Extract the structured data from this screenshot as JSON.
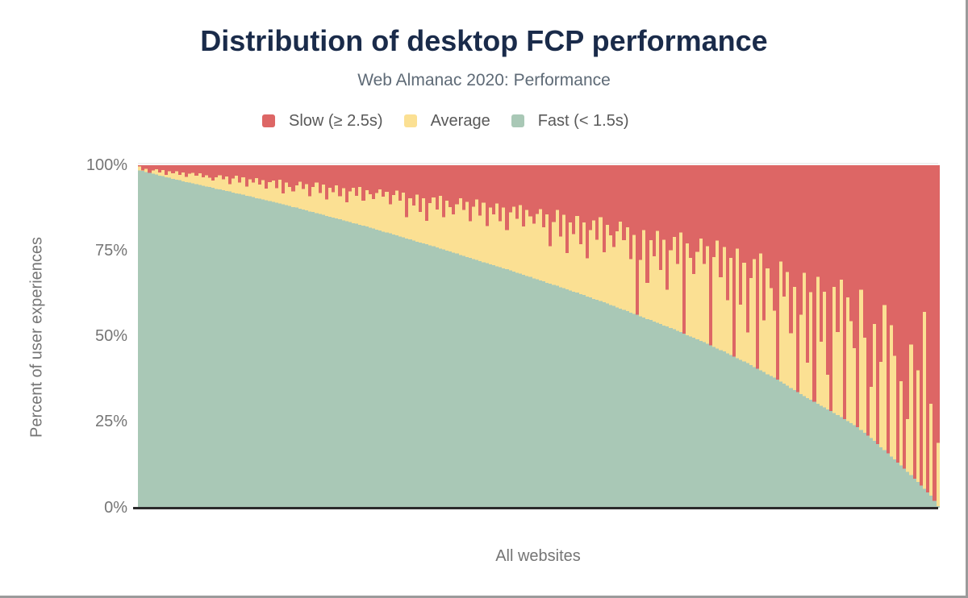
{
  "header": {
    "title": "Distribution of desktop FCP performance",
    "subtitle": "Web Almanac 2020: Performance"
  },
  "legend": {
    "items": [
      {
        "key": "slow",
        "label": "Slow (≥ 2.5s)",
        "color": "#dd6665"
      },
      {
        "key": "average",
        "label": "Average",
        "color": "#fbe093"
      },
      {
        "key": "fast",
        "label": "Fast (< 1.5s)",
        "color": "#a9c8b6"
      }
    ]
  },
  "axes": {
    "y_title": "Percent of user experiences",
    "y_ticks": [
      "100%",
      "75%",
      "50%",
      "25%",
      "0%"
    ],
    "x_label": "All websites"
  },
  "colors": {
    "slow": "#dd6665",
    "average": "#fbe093",
    "fast": "#a9c8b6",
    "title": "#1a2b4a",
    "subtitle": "#5e6a76",
    "axis_text": "#757575",
    "axis_line": "#2b2b2b"
  },
  "chart_data": {
    "type": "bar",
    "stacked": true,
    "title": "Distribution of desktop FCP performance",
    "subtitle": "Web Almanac 2020: Performance",
    "xlabel": "All websites",
    "ylabel": "Percent of user experiences",
    "ylim": [
      0,
      100
    ],
    "grid": false,
    "legend_position": "top",
    "series_order_bottom_to_top": [
      "fast",
      "average",
      "slow"
    ],
    "units": "percent of user experiences per website, websites sorted by descending fast share",
    "bars": {
      "fast": [
        98.5,
        98.3,
        98.0,
        97.8,
        97.5,
        97.3,
        97.0,
        96.8,
        96.5,
        96.3,
        96.0,
        95.8,
        95.6,
        95.3,
        95.1,
        94.9,
        94.7,
        94.5,
        94.2,
        94.0,
        93.8,
        93.6,
        93.4,
        93.1,
        92.9,
        92.7,
        92.5,
        92.3,
        92.0,
        91.8,
        91.6,
        91.4,
        91.1,
        90.9,
        90.7,
        90.4,
        90.2,
        90.0,
        89.8,
        89.5,
        89.3,
        89.1,
        88.8,
        88.6,
        88.3,
        88.1,
        87.8,
        87.6,
        87.3,
        87.1,
        86.8,
        86.5,
        86.3,
        86.0,
        85.8,
        85.5,
        85.2,
        85.0,
        84.7,
        84.5,
        84.2,
        83.9,
        83.7,
        83.4,
        83.1,
        82.9,
        82.6,
        82.3,
        82.1,
        81.8,
        81.5,
        81.2,
        80.9,
        80.6,
        80.3,
        80.1,
        79.8,
        79.5,
        79.2,
        78.9,
        78.6,
        78.3,
        78.0,
        77.7,
        77.4,
        77.2,
        76.9,
        76.6,
        76.3,
        76.0,
        75.7,
        75.4,
        75.1,
        74.8,
        74.5,
        74.2,
        73.8,
        73.5,
        73.2,
        72.9,
        72.6,
        72.3,
        72.0,
        71.7,
        71.4,
        71.1,
        70.8,
        70.5,
        70.2,
        69.9,
        69.6,
        69.3,
        69.0,
        68.6,
        68.3,
        68.0,
        67.7,
        67.4,
        67.0,
        66.7,
        66.4,
        66.1,
        65.7,
        65.4,
        65.1,
        64.8,
        64.4,
        64.1,
        63.8,
        63.4,
        63.1,
        62.8,
        62.4,
        62.1,
        61.7,
        61.4,
        61.0,
        60.7,
        60.3,
        60.0,
        59.6,
        59.2,
        58.9,
        58.5,
        58.1,
        57.8,
        57.4,
        57.0,
        56.6,
        56.3,
        55.9,
        55.5,
        55.1,
        54.8,
        54.4,
        54.0,
        53.6,
        53.2,
        52.9,
        52.5,
        52.1,
        51.7,
        51.3,
        50.8,
        50.4,
        50.0,
        49.6,
        49.2,
        48.7,
        48.3,
        47.9,
        47.4,
        47.0,
        46.5,
        46.0,
        45.6,
        45.1,
        44.6,
        44.1,
        43.7,
        43.2,
        42.7,
        42.2,
        41.6,
        41.1,
        40.6,
        40.1,
        39.6,
        39.0,
        38.5,
        38.0,
        37.4,
        36.8,
        36.2,
        35.6,
        35.0,
        34.4,
        33.8,
        33.2,
        32.6,
        32.0,
        31.5,
        30.9,
        30.4,
        29.8,
        29.3,
        28.7,
        28.2,
        27.6,
        27.1,
        26.5,
        25.9,
        25.3,
        24.7,
        24.1,
        23.5,
        22.7,
        21.9,
        21.1,
        20.3,
        19.5,
        18.6,
        17.7,
        16.8,
        15.9,
        15.0,
        14.1,
        13.2,
        12.3,
        11.4,
        10.5,
        9.5,
        8.5,
        7.5,
        6.5,
        5.5,
        4.5,
        3.5,
        2.0,
        0.5
      ],
      "slow": [
        0.4,
        1.5,
        1.1,
        2.2,
        1.5,
        1.2,
        2.1,
        1.4,
        2.8,
        1.8,
        2.3,
        1.8,
        2.8,
        2.1,
        3.4,
        2.5,
        2.2,
        3.0,
        2.3,
        3.5,
        2.9,
        3.7,
        4.5,
        3.5,
        2.9,
        4.1,
        3.3,
        5.5,
        3.9,
        3.1,
        5.0,
        3.5,
        6.2,
        4.1,
        5.0,
        3.8,
        5.7,
        4.3,
        6.8,
        4.9,
        4.5,
        6.7,
        4.2,
        8.2,
        5.1,
        6.3,
        7.7,
        5.9,
        4.8,
        6.9,
        5.5,
        9.1,
        6.4,
        5.1,
        8.1,
        5.7,
        10.0,
        6.6,
        7.9,
        5.9,
        9.1,
        6.7,
        10.8,
        7.7,
        6.6,
        8.9,
        6.4,
        10.3,
        7.3,
        8.5,
        9.9,
        8.1,
        7.1,
        9.2,
        7.8,
        11.4,
        8.7,
        7.4,
        10.4,
        8.0,
        15.2,
        9.7,
        11.8,
        8.6,
        13.6,
        9.7,
        16.2,
        11.1,
        9.4,
        12.9,
        8.9,
        15.2,
        10.3,
        12.2,
        14.3,
        11.4,
        9.7,
        13.0,
        10.7,
        16.4,
        12.1,
        10.0,
        14.7,
        10.9,
        17.8,
        12.3,
        14.4,
        11.2,
        16.3,
        12.4,
        18.9,
        13.8,
        12.1,
        15.7,
        11.6,
        17.9,
        13.1,
        14.9,
        17.1,
        14.2,
        12.8,
        18.1,
        14.4,
        23.6,
        16.6,
        13.1,
        20.8,
        14.5,
        25.7,
        16.7,
        20.1,
        14.8,
        23.0,
        16.7,
        27.2,
        18.9,
        16.1,
        21.8,
        15.2,
        25.4,
        17.4,
        20.5,
        23.9,
        19.3,
        16.5,
        21.9,
        18.1,
        27.4,
        20.4,
        43.7,
        27.7,
        18.9,
        34.4,
        21.9,
        26.6,
        19.2,
        30.6,
        21.8,
        36.3,
        24.8,
        20.9,
        28.8,
        19.7,
        49.2,
        22.8,
        27.0,
        31.8,
        25.3,
        21.4,
        28.8,
        23.7,
        52.6,
        26.8,
        22.0,
        32.7,
        23.9,
        39.4,
        27.0,
        55.9,
        24.4,
        40.7,
        28.5,
        48.8,
        32.9,
        27.4,
        59.4,
        25.8,
        45.3,
        30.1,
        35.9,
        42.5,
        62.6,
        28.1,
        38.4,
        31.2,
        49.0,
        35.5,
        66.2,
        43.6,
        31.4,
        57.7,
        37.0,
        69.1,
        32.6,
        51.5,
        36.9,
        61.2,
        71.8,
        35.5,
        48.7,
        33.4,
        74.1,
        38.6,
        45.5,
        53.4,
        76.5,
        36.3,
        50.3,
        78.9,
        64.7,
        46.4,
        81.4,
        57.4,
        40.8,
        84.1,
        46.7,
        55.6,
        86.8,
        63.1,
        88.6,
        74.1,
        52.4,
        91.5,
        59.9,
        93.5,
        42.8,
        95.5,
        69.6,
        98.0,
        81.0
      ]
    }
  }
}
